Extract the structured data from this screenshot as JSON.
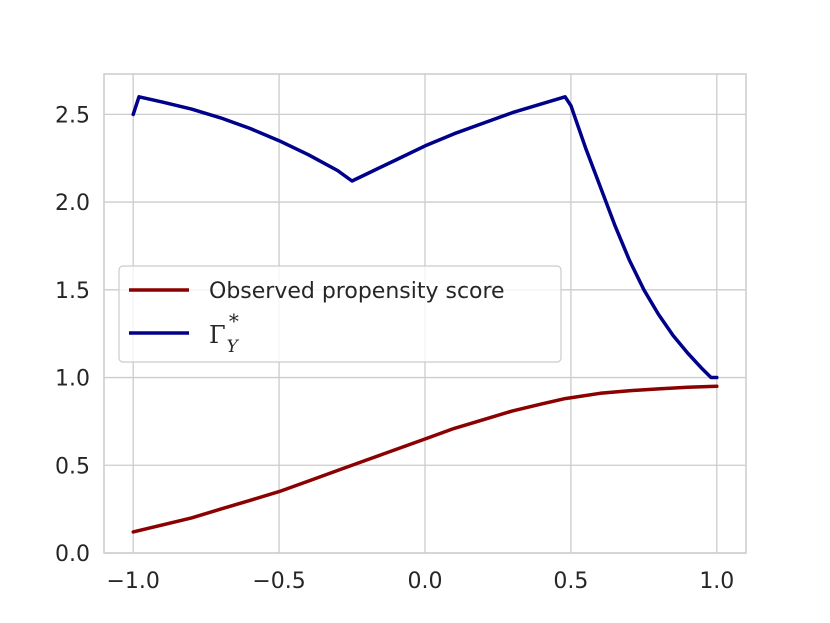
{
  "chart_data": {
    "type": "line",
    "title": "",
    "xlabel": "",
    "ylabel": "",
    "xlim": [
      -1.1,
      1.1
    ],
    "ylim": [
      0.0,
      2.73
    ],
    "grid": true,
    "legend_position": "center-left",
    "x_ticks": [
      -1.0,
      -0.5,
      0.0,
      0.5,
      1.0
    ],
    "x_tick_labels": [
      "−1.0",
      "−0.5",
      "0.0",
      "0.5",
      "1.0"
    ],
    "y_ticks": [
      0.0,
      0.5,
      1.0,
      1.5,
      2.0,
      2.5
    ],
    "y_tick_labels": [
      "0.0",
      "0.5",
      "1.0",
      "1.5",
      "2.0",
      "2.5"
    ],
    "series": [
      {
        "name": "Observed propensity score",
        "color": "#8b0000",
        "x": [
          -1.0,
          -0.9,
          -0.8,
          -0.7,
          -0.6,
          -0.5,
          -0.4,
          -0.3,
          -0.2,
          -0.1,
          0.0,
          0.1,
          0.2,
          0.3,
          0.4,
          0.48,
          0.6,
          0.7,
          0.8,
          0.9,
          1.0
        ],
        "y": [
          0.12,
          0.16,
          0.2,
          0.25,
          0.3,
          0.35,
          0.41,
          0.47,
          0.53,
          0.59,
          0.65,
          0.71,
          0.76,
          0.81,
          0.85,
          0.88,
          0.91,
          0.925,
          0.935,
          0.945,
          0.95
        ]
      },
      {
        "name": "Γ",
        "color": "#00008b",
        "x": [
          -1.0,
          -0.98,
          -0.9,
          -0.8,
          -0.7,
          -0.6,
          -0.5,
          -0.4,
          -0.3,
          -0.25,
          -0.2,
          -0.1,
          0.0,
          0.1,
          0.2,
          0.3,
          0.4,
          0.48,
          0.5,
          0.55,
          0.6,
          0.65,
          0.7,
          0.75,
          0.8,
          0.85,
          0.9,
          0.95,
          0.98,
          1.0
        ],
        "y": [
          2.5,
          2.6,
          2.57,
          2.53,
          2.48,
          2.42,
          2.35,
          2.27,
          2.18,
          2.12,
          2.16,
          2.24,
          2.32,
          2.39,
          2.45,
          2.51,
          2.56,
          2.6,
          2.55,
          2.31,
          2.09,
          1.87,
          1.67,
          1.5,
          1.36,
          1.24,
          1.14,
          1.05,
          1.0,
          1.0
        ]
      }
    ]
  },
  "legend": {
    "entry_1_label": "Observed propensity score",
    "entry_2_symbol": "Γ",
    "entry_2_subscript": "Y",
    "entry_2_superscript": "*"
  }
}
